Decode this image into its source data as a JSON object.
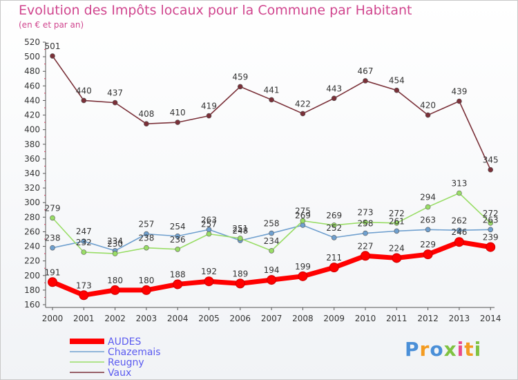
{
  "header": {
    "title": "Evolution des Impôts locaux pour la Commune par Habitant",
    "subtitle": "(en € et par an)"
  },
  "logo": {
    "text": "Proxiti"
  },
  "chart_data": {
    "type": "line",
    "title": "Evolution des Impôts locaux pour la Commune par Habitant",
    "subtitle": "(en € et par an)",
    "xlabel": "",
    "ylabel": "",
    "x": [
      "2000",
      "2001",
      "2002",
      "2003",
      "2004",
      "2005",
      "2006",
      "2007",
      "2008",
      "2009",
      "2010",
      "2011",
      "2012",
      "2013",
      "2014"
    ],
    "ylim": [
      160,
      520
    ],
    "ytick_step": 20,
    "grid": false,
    "legend_position": "bottom-left",
    "series": [
      {
        "name": "AUDES",
        "color": "#ff0000",
        "values": [
          191,
          173,
          180,
          180,
          188,
          192,
          189,
          194,
          199,
          211,
          227,
          224,
          229,
          246,
          239
        ]
      },
      {
        "name": "Chazemais",
        "color": "#6fa0cf",
        "values": [
          238,
          247,
          234,
          257,
          254,
          263,
          248,
          258,
          269,
          252,
          258,
          261,
          263,
          262,
          263
        ]
      },
      {
        "name": "Reugny",
        "color": "#99dd66",
        "values": [
          279,
          232,
          230,
          238,
          236,
          257,
          251,
          234,
          275,
          269,
          273,
          272,
          294,
          313,
          272
        ]
      },
      {
        "name": "Vaux",
        "color": "#7a3038",
        "values": [
          501,
          440,
          437,
          408,
          410,
          419,
          459,
          441,
          422,
          443,
          467,
          454,
          420,
          439,
          345
        ]
      }
    ]
  }
}
